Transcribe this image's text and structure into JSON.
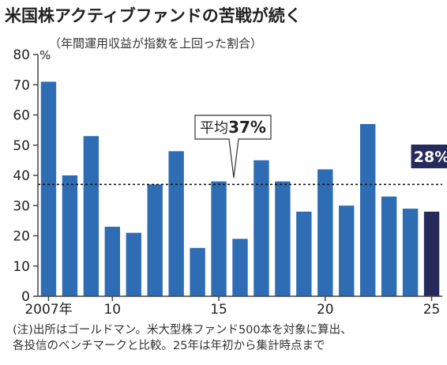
{
  "header": {
    "title": "米国株アクティブファンドの苦戦が続く",
    "subtitle": "（年間運用収益が指数を上回った割合）"
  },
  "footnote": {
    "line1": "(注)出所はゴールドマン。米大型株ファンド500本を対象に算出、",
    "line2": "各投信のベンチマークと比較。25年は年初から集計時点まで"
  },
  "colors": {
    "bar": "#2e6db4",
    "highlight_bar": "#262b5c",
    "axis": "#444444"
  },
  "chart_data": {
    "type": "bar",
    "x": [
      2007,
      2008,
      2009,
      2010,
      2011,
      2012,
      2013,
      2014,
      2015,
      2016,
      2017,
      2018,
      2019,
      2020,
      2021,
      2022,
      2023,
      2024,
      2025
    ],
    "x_tick_labels": [
      {
        "year": 2007,
        "label": "2007年"
      },
      {
        "year": 2010,
        "label": "10"
      },
      {
        "year": 2015,
        "label": "15"
      },
      {
        "year": 2020,
        "label": "20"
      },
      {
        "year": 2025,
        "label": "25"
      }
    ],
    "values": [
      71,
      40,
      53,
      23,
      21,
      37,
      48,
      16,
      38,
      19,
      45,
      38,
      28,
      42,
      30,
      57,
      33,
      29,
      28
    ],
    "ylim": [
      0,
      80
    ],
    "yticks": [
      0,
      10,
      20,
      30,
      40,
      50,
      60,
      70,
      80
    ],
    "yunit": "%",
    "average": {
      "value": 37,
      "label_prefix": "平均",
      "label_value": "37%"
    },
    "highlight": {
      "year": 2025,
      "label": "28%"
    },
    "grid": false
  }
}
